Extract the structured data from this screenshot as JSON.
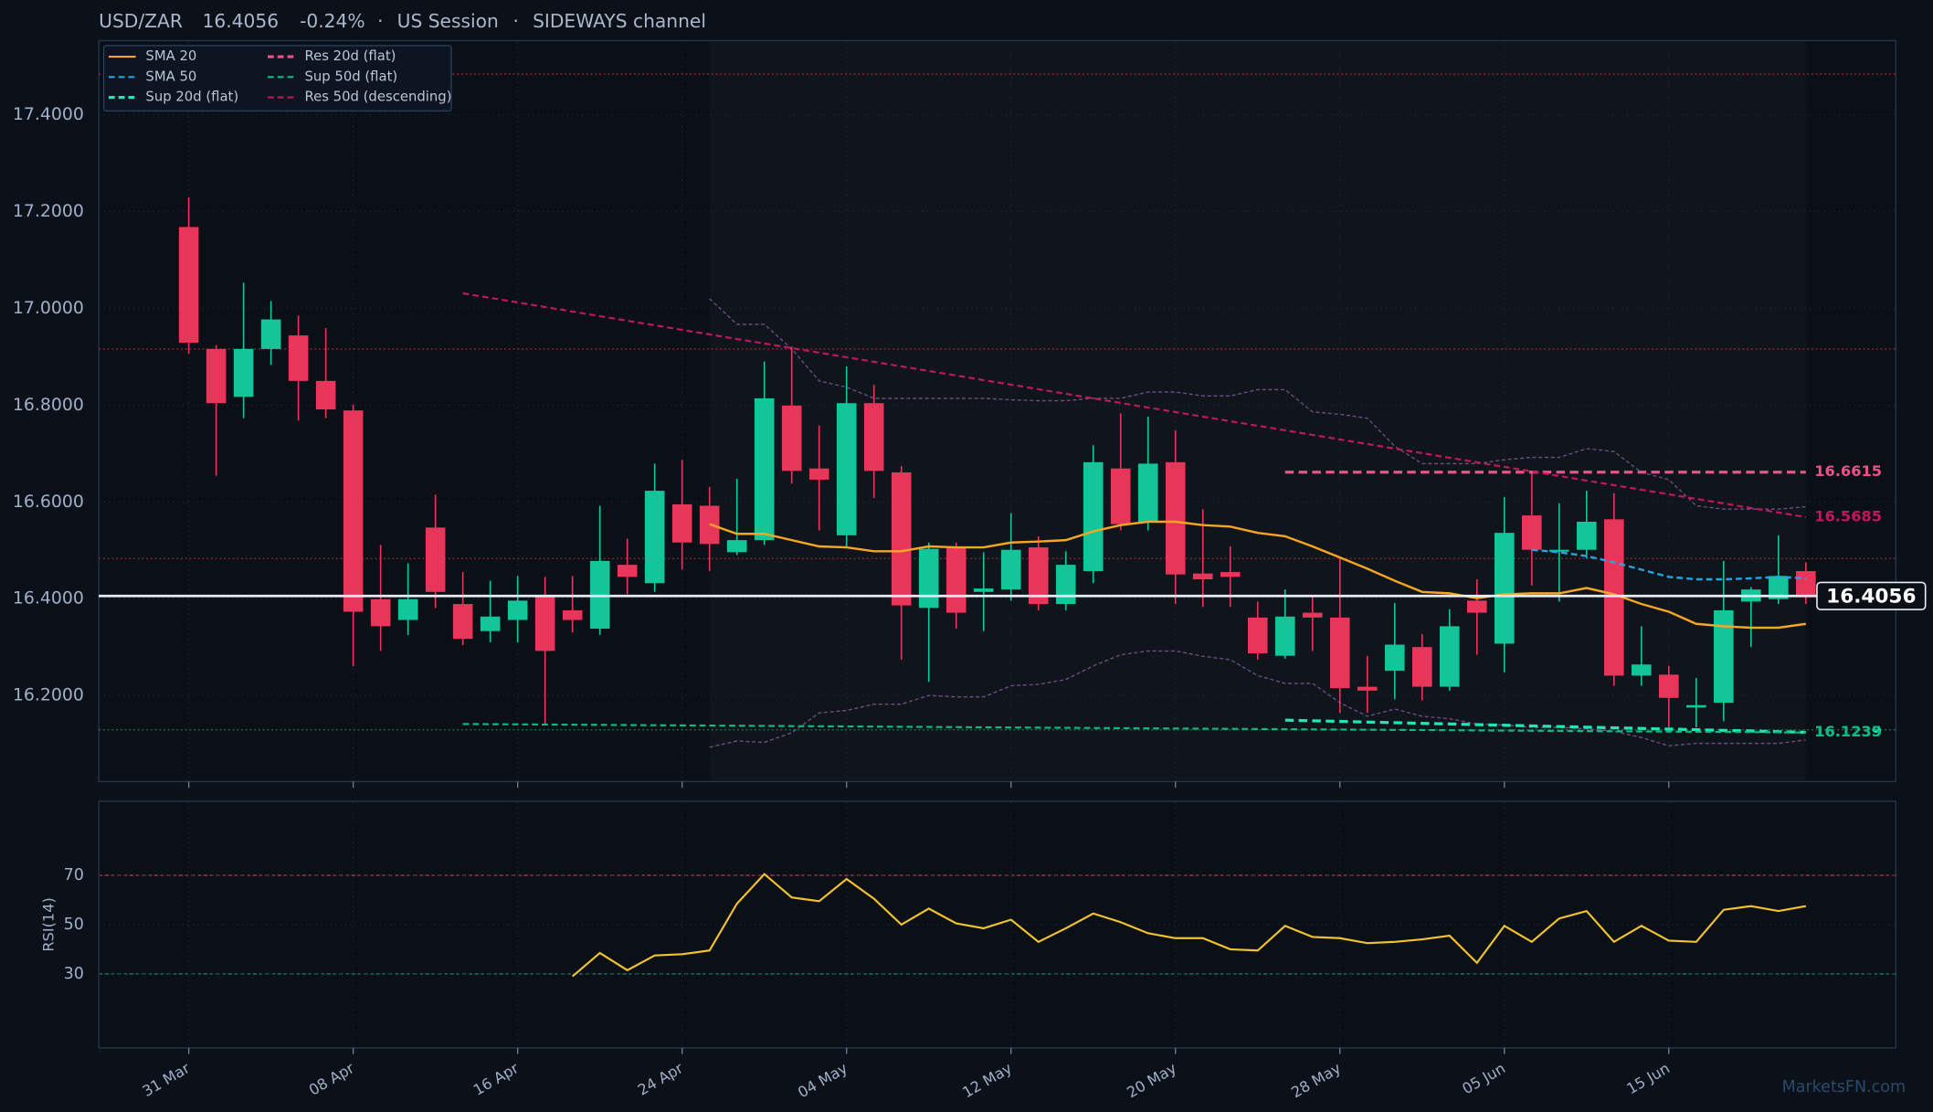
{
  "chart_data": [
    {
      "type": "candlestick",
      "title": "USD/ZAR",
      "last_price": 16.4056,
      "change": {
        "value": -0.24,
        "label": "-0.24%"
      },
      "title_separator": "·",
      "session": "US Session",
      "channel": "SIDEWAYS channel",
      "watermark": "MarketsFN.com",
      "categories": [
        "31 Mar",
        null,
        null,
        null,
        null,
        null,
        "08 Apr",
        null,
        null,
        null,
        null,
        null,
        "16 Apr",
        null,
        null,
        null,
        null,
        null,
        "24 Apr",
        null,
        null,
        null,
        null,
        null,
        "04 May",
        null,
        null,
        null,
        null,
        null,
        "12 May",
        null,
        null,
        null,
        null,
        null,
        "20 May",
        null,
        null,
        null,
        null,
        null,
        "28 May",
        null,
        null,
        null,
        null,
        null,
        "05 Jun",
        null,
        null,
        null,
        null,
        null,
        "15 Jun",
        null,
        null,
        null,
        null,
        null
      ],
      "open": [
        17.168,
        16.916,
        16.817,
        16.916,
        16.944,
        16.85,
        16.789,
        16.399,
        16.356,
        16.547,
        16.389,
        16.333,
        16.356,
        16.404,
        16.376,
        16.338,
        16.47,
        16.432,
        16.595,
        16.592,
        16.496,
        16.521,
        16.799,
        16.669,
        16.531,
        16.804,
        16.661,
        16.381,
        16.506,
        16.414,
        16.419,
        16.506,
        16.389,
        16.457,
        16.669,
        16.559,
        16.682,
        16.452,
        16.455,
        16.361,
        16.282,
        16.371,
        16.361,
        16.218,
        16.251,
        16.3,
        16.218,
        16.396,
        16.307,
        16.572,
        16.498,
        16.501,
        16.564,
        16.241,
        16.243,
        16.175,
        16.185,
        16.394,
        16.399,
        16.457
      ],
      "high": [
        17.229,
        16.924,
        17.053,
        17.015,
        16.985,
        16.959,
        16.801,
        16.511,
        16.473,
        16.615,
        16.455,
        16.437,
        16.447,
        16.445,
        16.447,
        16.592,
        16.524,
        16.679,
        16.687,
        16.631,
        16.648,
        16.89,
        16.921,
        16.758,
        16.88,
        16.842,
        16.674,
        16.516,
        16.516,
        16.496,
        16.577,
        16.529,
        16.498,
        16.717,
        16.783,
        16.776,
        16.748,
        16.585,
        16.508,
        16.394,
        16.419,
        16.406,
        16.483,
        16.282,
        16.391,
        16.327,
        16.378,
        16.44,
        16.61,
        16.661,
        16.597,
        16.623,
        16.618,
        16.343,
        16.261,
        16.236,
        16.478,
        16.424,
        16.531,
        16.475
      ],
      "low": [
        16.906,
        16.654,
        16.773,
        16.883,
        16.768,
        16.773,
        16.261,
        16.292,
        16.325,
        16.381,
        16.304,
        16.31,
        16.31,
        16.141,
        16.33,
        16.325,
        16.409,
        16.414,
        16.46,
        16.457,
        16.49,
        16.511,
        16.638,
        16.541,
        16.508,
        16.608,
        16.274,
        16.228,
        16.338,
        16.333,
        16.396,
        16.376,
        16.376,
        16.432,
        16.541,
        16.541,
        16.389,
        16.383,
        16.383,
        16.274,
        16.276,
        16.292,
        16.164,
        16.164,
        16.192,
        16.19,
        16.21,
        16.284,
        16.248,
        16.427,
        16.394,
        16.483,
        16.22,
        16.22,
        16.134,
        16.134,
        16.147,
        16.3,
        16.389,
        16.389
      ],
      "close": [
        16.929,
        16.804,
        16.916,
        16.977,
        16.85,
        16.791,
        16.373,
        16.343,
        16.399,
        16.414,
        16.317,
        16.363,
        16.396,
        16.292,
        16.356,
        16.478,
        16.445,
        16.623,
        16.516,
        16.513,
        16.521,
        16.814,
        16.664,
        16.646,
        16.804,
        16.664,
        16.386,
        16.503,
        16.371,
        16.421,
        16.501,
        16.389,
        16.47,
        16.682,
        16.554,
        16.679,
        16.45,
        16.44,
        16.445,
        16.287,
        16.363,
        16.361,
        16.215,
        16.21,
        16.305,
        16.218,
        16.343,
        16.371,
        16.536,
        16.501,
        16.501,
        16.559,
        16.241,
        16.264,
        16.195,
        16.18,
        16.376,
        16.419,
        16.447,
        16.4056
      ],
      "up_color": "#12c69a",
      "down_color": "#e8365a",
      "ylim": [
        16.022,
        17.553
      ],
      "yticks": [
        {
          "value": 16.2,
          "label": "16.2000"
        },
        {
          "value": 16.4,
          "label": "16.4000"
        },
        {
          "value": 16.6,
          "label": "16.6000"
        },
        {
          "value": 16.8,
          "label": "16.8000"
        },
        {
          "value": 17.0,
          "label": "17.0000"
        },
        {
          "value": 17.2,
          "label": "17.2000"
        },
        {
          "value": 17.4,
          "label": "17.4000"
        }
      ],
      "grid": true,
      "series": [
        {
          "name": "SMA 20",
          "color": "#f5a623",
          "style": "solid",
          "values": [
            null,
            null,
            null,
            null,
            null,
            null,
            null,
            null,
            null,
            null,
            null,
            null,
            null,
            null,
            null,
            null,
            null,
            null,
            null,
            16.554,
            16.534,
            16.534,
            16.521,
            16.508,
            16.506,
            16.498,
            16.498,
            16.508,
            16.506,
            16.506,
            16.516,
            16.518,
            16.521,
            16.539,
            16.552,
            16.559,
            16.559,
            16.552,
            16.549,
            16.536,
            16.529,
            16.508,
            16.485,
            16.462,
            16.437,
            16.414,
            16.411,
            16.401,
            16.409,
            16.411,
            16.411,
            16.422,
            16.409,
            16.389,
            16.373,
            16.348,
            16.343,
            16.34,
            16.34,
            16.348
          ]
        },
        {
          "name": "SMA 50",
          "color": "#29a3e0",
          "style": "dashed",
          "values": [
            null,
            null,
            null,
            null,
            null,
            null,
            null,
            null,
            null,
            null,
            null,
            null,
            null,
            null,
            null,
            null,
            null,
            null,
            null,
            null,
            null,
            null,
            null,
            null,
            null,
            null,
            null,
            null,
            null,
            null,
            null,
            null,
            null,
            null,
            null,
            null,
            null,
            null,
            null,
            null,
            null,
            null,
            null,
            null,
            null,
            null,
            null,
            null,
            null,
            16.501,
            16.496,
            16.488,
            16.475,
            16.46,
            16.445,
            16.44,
            16.44,
            16.442,
            16.445,
            16.442
          ]
        }
      ],
      "band": {
        "color": "#6b4f8a",
        "upper": [
          null,
          null,
          null,
          null,
          null,
          null,
          null,
          null,
          null,
          null,
          null,
          null,
          null,
          null,
          null,
          null,
          null,
          null,
          null,
          17.02,
          16.967,
          16.967,
          16.916,
          16.85,
          16.837,
          16.814,
          16.814,
          16.814,
          16.814,
          16.814,
          16.811,
          16.809,
          16.809,
          16.814,
          16.814,
          16.827,
          16.827,
          16.819,
          16.819,
          16.832,
          16.832,
          16.786,
          16.781,
          16.773,
          16.715,
          16.679,
          16.679,
          16.679,
          16.687,
          16.692,
          16.692,
          16.71,
          16.704,
          16.661,
          16.646,
          16.592,
          16.585,
          16.585,
          16.585,
          16.59
        ],
        "lower": [
          null,
          null,
          null,
          null,
          null,
          null,
          null,
          null,
          null,
          null,
          null,
          null,
          null,
          null,
          null,
          null,
          null,
          null,
          null,
          16.093,
          16.106,
          16.103,
          16.123,
          16.164,
          16.169,
          16.182,
          16.182,
          16.2,
          16.197,
          16.197,
          16.22,
          16.223,
          16.233,
          16.261,
          16.284,
          16.292,
          16.292,
          16.281,
          16.274,
          16.241,
          16.225,
          16.225,
          16.185,
          16.157,
          16.172,
          16.157,
          16.152,
          16.141,
          16.139,
          16.134,
          16.134,
          16.131,
          16.126,
          16.113,
          16.096,
          16.101,
          16.101,
          16.101,
          16.101,
          16.108
        ]
      },
      "trendlines": [
        {
          "name": "Sup 20d (flat)",
          "color": "#1de9b6",
          "style": "bold",
          "x": [
            40,
            59
          ],
          "values": [
            16.149,
            16.1239
          ]
        },
        {
          "name": "Res 20d (flat)",
          "color": "#f0508a",
          "style": "bold",
          "x": [
            40,
            59
          ],
          "values": [
            16.6615,
            16.6615
          ]
        },
        {
          "name": "Sup 50d (flat)",
          "color": "#10b981",
          "style": "dashed",
          "x": [
            10,
            59
          ],
          "values": [
            16.141,
            16.1235
          ]
        },
        {
          "name": "Res 50d (descending)",
          "color": "#c2185b",
          "style": "dashed",
          "x": [
            10,
            59
          ],
          "values": [
            17.031,
            16.5685
          ]
        }
      ],
      "levels": [
        {
          "value": 17.484,
          "color": "#8b2a35"
        },
        {
          "value": 16.916,
          "color": "#8b2a35"
        },
        {
          "value": 16.483,
          "color": "#8b2a35"
        },
        {
          "value": 16.129,
          "color": "#1f6b4a"
        }
      ]
    },
    {
      "type": "line",
      "ylabel": "RSI(14)",
      "color": "#f2c230",
      "ylim": [
        0,
        100
      ],
      "yticks": [
        30,
        50,
        70
      ],
      "overbought": {
        "value": 70,
        "color": "#a83a48"
      },
      "oversold": {
        "value": 30,
        "color": "#1b8a6b"
      },
      "values": [
        null,
        null,
        null,
        null,
        null,
        null,
        null,
        null,
        null,
        null,
        null,
        null,
        null,
        null,
        29,
        38.5,
        31.5,
        37.5,
        38,
        39.5,
        58.5,
        70.5,
        61,
        59.5,
        68.5,
        60.5,
        50,
        56.5,
        50.5,
        48.5,
        52,
        43,
        48.5,
        54.5,
        51,
        46.5,
        44.5,
        44.5,
        40,
        39.5,
        49.5,
        45,
        44.5,
        42.5,
        43,
        44,
        45.5,
        34.5,
        49.5,
        43,
        52.5,
        55.5,
        43,
        49.5,
        43.5,
        43,
        56,
        57.5,
        55.5,
        57.5
      ]
    }
  ]
}
